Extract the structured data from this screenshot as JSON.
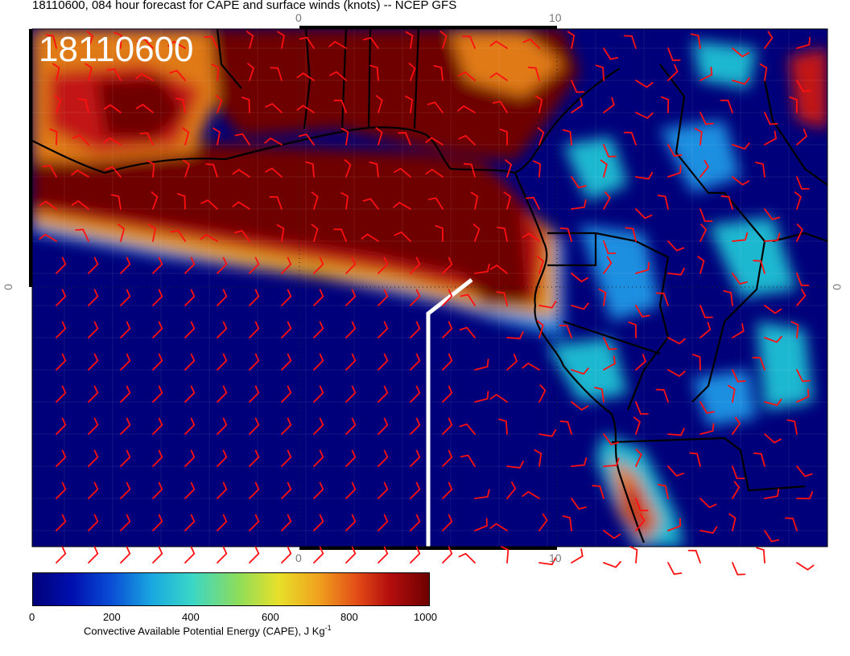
{
  "title": "18110600, 084 hour forecast for CAPE and surface winds (knots) -- NCEP GFS",
  "timestamp": "18110600",
  "axis_ticks": {
    "top": [
      "0",
      "10"
    ],
    "bottom": [
      "0",
      "10"
    ],
    "left": "0",
    "right": "0"
  },
  "colorbar": {
    "ticks": [
      "0",
      "200",
      "400",
      "600",
      "800",
      "1000"
    ],
    "label_main": "Convective Available Potential Energy (CAPE), J Kg",
    "label_sup": "-1"
  },
  "colors": {
    "cape_low": "#00007a",
    "cape_high": "#6e0000",
    "wind_barb": "#ff1010",
    "coastline": "#000000",
    "track": "#ffffff"
  }
}
